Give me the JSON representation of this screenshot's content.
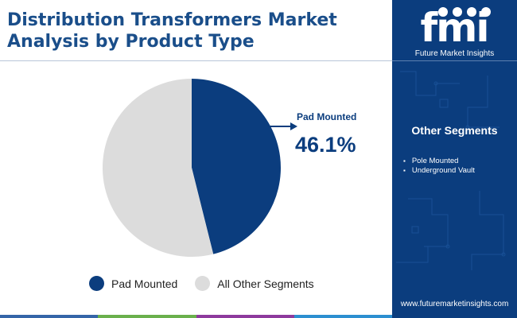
{
  "title": {
    "line1": "Distribution Transformers Market",
    "line2": "Analysis by Product Type"
  },
  "chart_data": {
    "type": "pie",
    "title": "Distribution Transformers Market Analysis by Product Type",
    "slices": [
      {
        "label": "Pad Mounted",
        "value": 46.1,
        "color": "#0b3d7e"
      },
      {
        "label": "All Other Segments",
        "value": 53.9,
        "color": "#dcdcdc"
      }
    ],
    "start_angle_deg": 0,
    "direction": "clockwise",
    "legend_position": "bottom"
  },
  "callout": {
    "label": "Pad Mounted",
    "value": "46.1%"
  },
  "legend": {
    "items": [
      {
        "label": "Pad Mounted",
        "color": "#0b3d7e"
      },
      {
        "label": "All Other Segments",
        "color": "#dcdcdc"
      }
    ]
  },
  "sidebar": {
    "logo_text": "fmi",
    "logo_caption": "Future Market Insights",
    "segments_title": "Other Segments",
    "segments": [
      "Pole Mounted",
      "Underground Vault"
    ],
    "url": "www.futuremarketinsights.com",
    "background_color": "#0b3d7e"
  },
  "bottom_bar_colors": [
    "#3565a8",
    "#6ab04c",
    "#8e3a9d",
    "#2c8fd0"
  ]
}
